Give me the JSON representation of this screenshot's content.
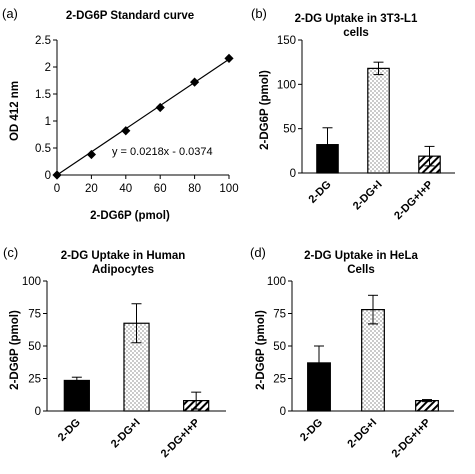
{
  "chart_data": [
    {
      "panel": "(a)",
      "type": "scatter",
      "title": "2-DG6P Standard curve",
      "xlabel": "2-DG6P (pmol)",
      "ylabel": "OD 412 nm",
      "xlim": [
        0,
        100
      ],
      "ylim": [
        0,
        2.5
      ],
      "xticks": [
        0,
        20,
        40,
        60,
        80,
        100
      ],
      "yticks": [
        0,
        0.5,
        1,
        1.5,
        2,
        2.5
      ],
      "points": [
        {
          "x": 0,
          "y": 0.0
        },
        {
          "x": 20,
          "y": 0.38
        },
        {
          "x": 40,
          "y": 0.82
        },
        {
          "x": 60,
          "y": 1.25
        },
        {
          "x": 80,
          "y": 1.72
        },
        {
          "x": 100,
          "y": 2.16
        }
      ],
      "trendline": {
        "slope": 0.0218,
        "intercept": -0.0374,
        "label": "y = 0.0218x - 0.0374"
      },
      "grid": false
    },
    {
      "panel": "(b)",
      "type": "bar",
      "title": [
        "2-DG Uptake in 3T3-L1",
        "cells"
      ],
      "ylabel": "2-DG6P (pmol)",
      "ylim": [
        0,
        150
      ],
      "yticks": [
        0,
        50,
        100,
        150
      ],
      "categories": [
        "2-DG",
        "2-DG+I",
        "2-DG+I+P"
      ],
      "values": [
        32,
        118,
        19
      ],
      "errors": [
        19,
        7,
        11
      ],
      "fills": [
        "solid",
        "dots",
        "hatch"
      ]
    },
    {
      "panel": "(c)",
      "type": "bar",
      "title": [
        "2-DG Uptake in Human",
        "Adipocytes"
      ],
      "ylabel": "2-DG6P (pmol)",
      "ylim": [
        0,
        100
      ],
      "yticks": [
        0,
        25,
        50,
        75,
        100
      ],
      "categories": [
        "2-DG",
        "2-DG+I",
        "2-DG+I+P"
      ],
      "values": [
        23.5,
        67.5,
        8
      ],
      "errors": [
        2.5,
        15,
        6.5
      ],
      "fills": [
        "solid",
        "dots",
        "hatch"
      ]
    },
    {
      "panel": "(d)",
      "type": "bar",
      "title": [
        "2-DG Uptake in HeLa",
        "Cells"
      ],
      "ylabel": "2-DG6P (pmol)",
      "ylim": [
        0,
        100
      ],
      "yticks": [
        0,
        25,
        50,
        75,
        100
      ],
      "categories": [
        "2-DG",
        "2-DG+I",
        "2-DG+I+P"
      ],
      "values": [
        37,
        78,
        8
      ],
      "errors": [
        13,
        11,
        0.8
      ],
      "fills": [
        "solid",
        "dots",
        "hatch"
      ]
    }
  ]
}
